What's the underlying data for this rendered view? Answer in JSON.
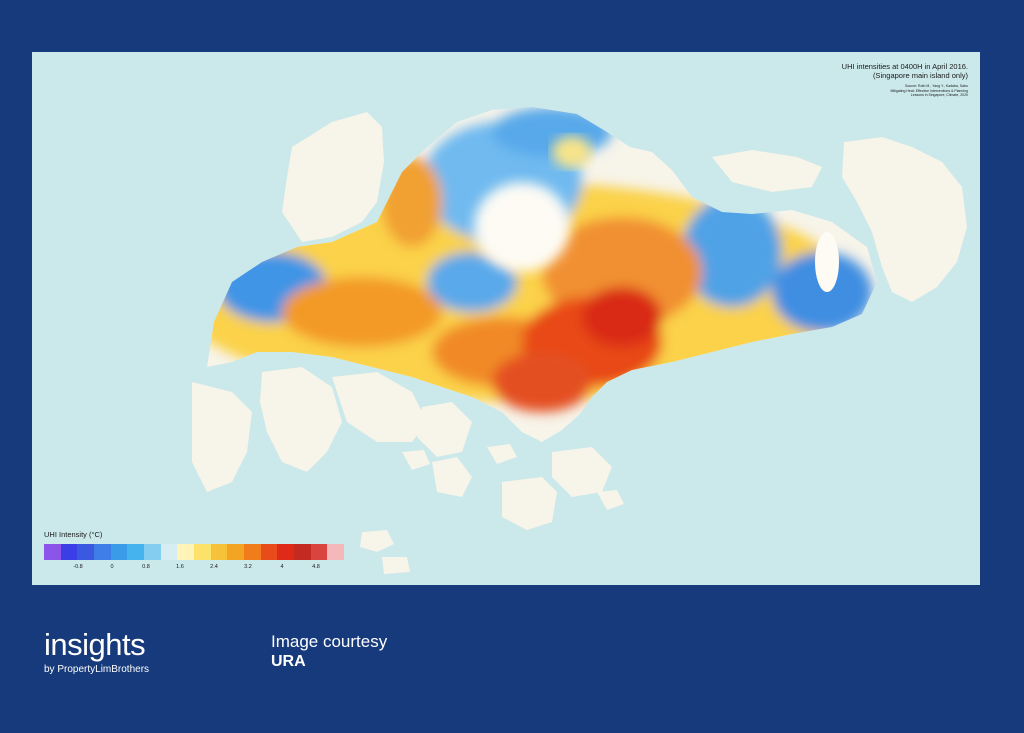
{
  "map": {
    "title_lines": [
      "UHI intensities at 0400H in April 2016.",
      "(Singapore main island only)"
    ],
    "source_lines": [
      "Source: Roth M., Yang Y., Kadaba, Sabu",
      "Mitigating Heat: Effective Interventions & Planning",
      "Lessons in Singapore, Climate, 2020"
    ],
    "legend": {
      "title": "UHI Intensity (°C)",
      "colors": [
        "#8a55e8",
        "#3b3de6",
        "#3a58e0",
        "#3f7ee8",
        "#3a9be8",
        "#45b3ee",
        "#84cdf0",
        "#d5edf3",
        "#fff3b8",
        "#fce26a",
        "#f6c23a",
        "#f3a422",
        "#f07c1c",
        "#e84c1a",
        "#e02a18",
        "#c52a22",
        "#d9443e",
        "#f4b8ba"
      ],
      "ticks": [
        "-0.8",
        "0",
        "0.8",
        "1.6",
        "2.4",
        "3.2",
        "4",
        "4.8"
      ]
    }
  },
  "brand": {
    "name": "insights",
    "sub": "by PropertyLimBrothers"
  },
  "credit": {
    "label": "Image courtesy",
    "value": "URA"
  }
}
